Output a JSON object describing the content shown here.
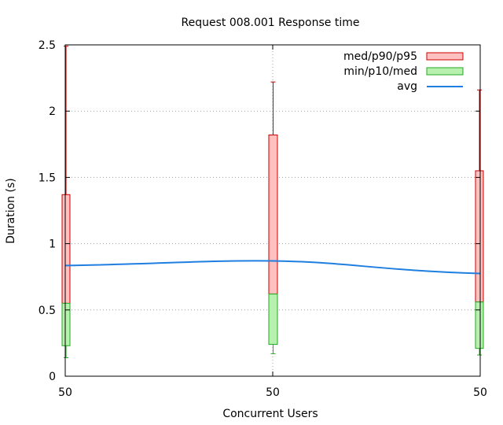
{
  "chart_data": {
    "type": "box",
    "title": "Request 008.001 Response time",
    "xlabel": "Concurrent Users",
    "ylabel": "Duration (s)",
    "ylim": [
      0,
      2.5
    ],
    "yticks": [
      0,
      0.5,
      1,
      1.5,
      2,
      2.5
    ],
    "ytick_labels": [
      "0",
      "0.5",
      "1",
      "1.5",
      "2",
      "2.5"
    ],
    "x_tick_labels": [
      "50",
      "50",
      "50"
    ],
    "grid": true,
    "legend_position": "top-right",
    "legend": [
      {
        "label": "med/p90/p95",
        "kind": "box",
        "fill": "#ffc0c0",
        "stroke": "#cc0000"
      },
      {
        "label": "min/p10/med",
        "kind": "box",
        "fill": "#b8f0b0",
        "stroke": "#22aa22"
      },
      {
        "label": "avg",
        "kind": "line",
        "stroke": "#1f7fe0"
      }
    ],
    "colors": {
      "upper_box": "#ffc0c0",
      "upper_stroke": "#cc0000",
      "lower_box": "#b8f0b0",
      "lower_stroke": "#22aa22",
      "avg_line": "#1f7fe0"
    },
    "series": [
      {
        "x": 0,
        "min": 0.14,
        "p10": 0.23,
        "med": 0.55,
        "p90": 1.37,
        "p95": 2.49,
        "avg": 0.835
      },
      {
        "x": 1,
        "min": 0.17,
        "p10": 0.24,
        "med": 0.62,
        "p90": 1.82,
        "p95": 2.22,
        "avg": 0.87
      },
      {
        "x": 2,
        "min": 0.16,
        "p10": 0.21,
        "med": 0.56,
        "p90": 1.55,
        "p95": 2.16,
        "avg": 0.775
      }
    ]
  }
}
